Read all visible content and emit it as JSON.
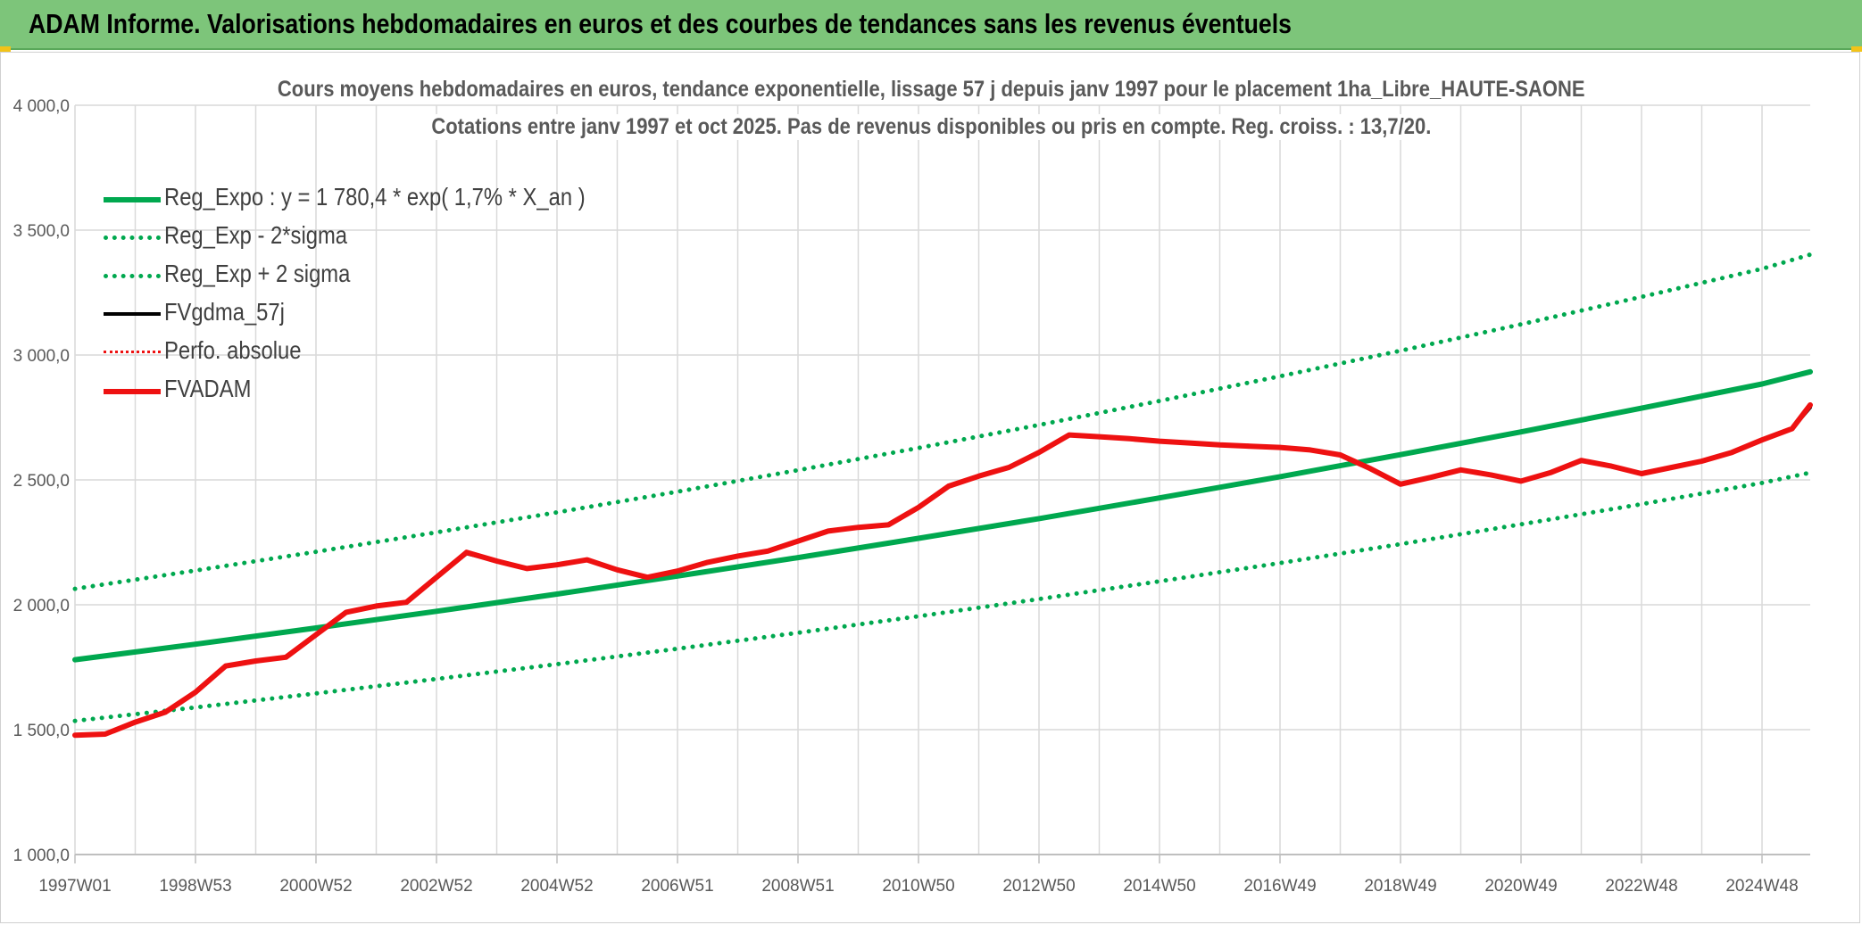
{
  "header": {
    "title": "ADAM Informe. Valorisations hebdomadaires en euros et des courbes de tendances sans les revenus éventuels"
  },
  "colors": {
    "banner": "#7dc57a",
    "green": "#00a84f",
    "red": "#ee1111",
    "black": "#000000",
    "grid": "#d9d9d9",
    "axis_text": "#595959"
  },
  "chart_data": {
    "type": "line",
    "title": "Cours moyens hebdomadaires en euros, tendance exponentielle, lissage 57 j depuis janv 1997 pour le placement 1ha_Libre_HAUTE-SAONE",
    "subtitle": "Cotations entre janv 1997 et oct 2025. Pas de revenus disponibles ou pris en compte. Reg. croiss. : 13,7/20.",
    "xlabel": "",
    "ylabel": "",
    "ylim": [
      1000,
      4000
    ],
    "y_ticks": [
      1000,
      1500,
      2000,
      2500,
      3000,
      3500,
      4000
    ],
    "y_tick_labels": [
      "1 000,0",
      "1 500,0",
      "2 000,0",
      "2 500,0",
      "3 000,0",
      "3 500,0",
      "4 000,0"
    ],
    "x_range_years": [
      0,
      28.8
    ],
    "x_tick_years": [
      0,
      2,
      4,
      6,
      8,
      10,
      12,
      14,
      16,
      18,
      20,
      22,
      24,
      26,
      28
    ],
    "x_tick_labels": [
      "1997W01",
      "1998W53",
      "2000W52",
      "2002W52",
      "2004W52",
      "2006W51",
      "2008W51",
      "2010W50",
      "2012W50",
      "2014W50",
      "2016W49",
      "2018W49",
      "2020W49",
      "2022W48",
      "2024W48"
    ],
    "grid": true,
    "legend_position": "top-left",
    "series": [
      {
        "name": "Reg_Expo : y = 1 780,4 * exp( 1,7% *  X_an )",
        "style": "solid-thick",
        "color": "#00a84f",
        "x": [
          0,
          2,
          4,
          6,
          8,
          10,
          12,
          14,
          16,
          18,
          20,
          22,
          24,
          26,
          28,
          28.8
        ],
        "values": [
          1780,
          1842,
          1907,
          1974,
          2043,
          2115,
          2189,
          2266,
          2345,
          2428,
          2513,
          2601,
          2692,
          2787,
          2884,
          2933
        ]
      },
      {
        "name": "Reg_Exp - 2*sigma",
        "style": "dotted",
        "color": "#00a84f",
        "x": [
          0,
          2,
          4,
          6,
          8,
          10,
          12,
          14,
          16,
          18,
          20,
          22,
          24,
          26,
          28,
          28.8
        ],
        "values": [
          1535,
          1589,
          1645,
          1703,
          1762,
          1824,
          1888,
          1954,
          2023,
          2094,
          2167,
          2243,
          2322,
          2403,
          2488,
          2529
        ]
      },
      {
        "name": "Reg_Exp + 2 sigma",
        "style": "dotted",
        "color": "#00a84f",
        "x": [
          0,
          2,
          4,
          6,
          8,
          10,
          12,
          14,
          16,
          18,
          20,
          22,
          24,
          26,
          28,
          28.8
        ],
        "values": [
          2064,
          2137,
          2212,
          2290,
          2370,
          2453,
          2539,
          2628,
          2720,
          2816,
          2915,
          3017,
          3123,
          3233,
          3345,
          3402
        ]
      },
      {
        "name": "FVgdma_57j",
        "style": "solid-thin",
        "color": "#000000",
        "x": [
          0,
          0.5,
          1.0,
          1.5,
          2.0,
          2.5,
          3.0,
          3.5,
          4.0,
          4.5,
          5.0,
          5.5,
          6.0,
          6.5,
          7.0,
          7.5,
          8.0,
          8.5,
          9.0,
          9.5,
          10.0,
          10.5,
          11.0,
          11.5,
          12.0,
          12.5,
          13.0,
          13.5,
          14.0,
          14.5,
          15.0,
          15.5,
          16.0,
          16.5,
          17.0,
          17.5,
          18.0,
          18.5,
          19.0,
          19.5,
          20.0,
          20.5,
          21.0,
          21.5,
          22.0,
          22.5,
          23.0,
          23.5,
          24.0,
          24.5,
          25.0,
          25.5,
          26.0,
          26.5,
          27.0,
          27.5,
          28.0,
          28.5,
          28.8
        ],
        "values": [
          1478,
          1482,
          1530,
          1570,
          1650,
          1755,
          1775,
          1790,
          1880,
          1970,
          1995,
          2010,
          2110,
          2205,
          2175,
          2145,
          2160,
          2180,
          2140,
          2110,
          2135,
          2170,
          2195,
          2215,
          2255,
          2295,
          2310,
          2320,
          2390,
          2475,
          2515,
          2550,
          2610,
          2678,
          2673,
          2665,
          2655,
          2648,
          2640,
          2635,
          2630,
          2620,
          2600,
          2545,
          2483,
          2510,
          2540,
          2520,
          2495,
          2530,
          2578,
          2555,
          2525,
          2550,
          2575,
          2610,
          2660,
          2705,
          2790
        ]
      },
      {
        "name": "Perfo. absolue",
        "style": "dotted",
        "color": "#ee1111",
        "x": [],
        "values": []
      },
      {
        "name": "FVADAM",
        "style": "solid-thick",
        "color": "#ee1111",
        "x": [
          0,
          0.5,
          1.0,
          1.5,
          2.0,
          2.5,
          3.0,
          3.5,
          4.0,
          4.5,
          5.0,
          5.5,
          6.0,
          6.5,
          7.0,
          7.5,
          8.0,
          8.5,
          9.0,
          9.5,
          10.0,
          10.5,
          11.0,
          11.5,
          12.0,
          12.5,
          13.0,
          13.5,
          14.0,
          14.5,
          15.0,
          15.5,
          16.0,
          16.5,
          17.0,
          17.5,
          18.0,
          18.5,
          19.0,
          19.5,
          20.0,
          20.5,
          21.0,
          21.5,
          22.0,
          22.5,
          23.0,
          23.5,
          24.0,
          24.5,
          25.0,
          25.5,
          26.0,
          26.5,
          27.0,
          27.5,
          28.0,
          28.5,
          28.8
        ],
        "values": [
          1478,
          1482,
          1530,
          1570,
          1650,
          1755,
          1775,
          1790,
          1880,
          1970,
          1995,
          2010,
          2110,
          2210,
          2175,
          2145,
          2160,
          2180,
          2140,
          2110,
          2135,
          2170,
          2195,
          2215,
          2255,
          2295,
          2310,
          2320,
          2390,
          2475,
          2515,
          2550,
          2610,
          2680,
          2673,
          2665,
          2655,
          2648,
          2640,
          2635,
          2630,
          2620,
          2600,
          2545,
          2483,
          2510,
          2540,
          2520,
          2495,
          2530,
          2578,
          2555,
          2525,
          2550,
          2575,
          2610,
          2660,
          2705,
          2800
        ]
      }
    ]
  }
}
